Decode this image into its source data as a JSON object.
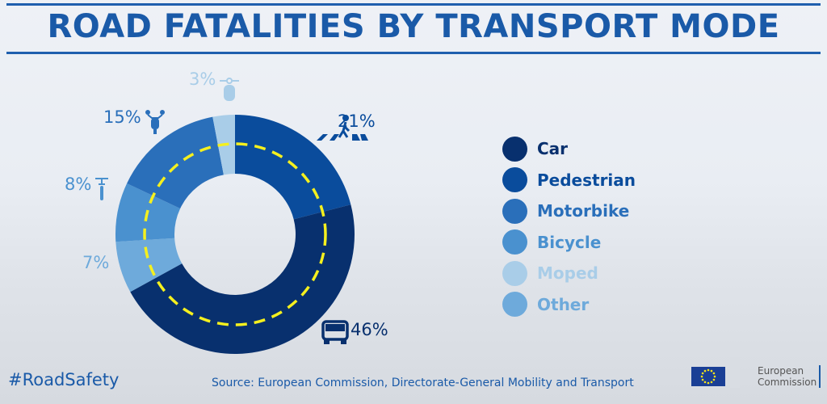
{
  "title": "ROAD FATALITIES BY TRANSPORT MODE",
  "chart_data": {
    "type": "pie",
    "donut": true,
    "title": "ROAD FATALITIES BY TRANSPORT MODE",
    "slices": [
      {
        "name": "Pedestrian",
        "value": 21,
        "label": "21%",
        "color": "#0a4c9c",
        "icon": "pedestrian-crossing-icon"
      },
      {
        "name": "Car",
        "value": 46,
        "label": "46%",
        "color": "#08306e",
        "icon": "car-icon"
      },
      {
        "name": "Other",
        "value": 7,
        "label": "7%",
        "color": "#6eaadb",
        "icon": ""
      },
      {
        "name": "Bicycle",
        "value": 8,
        "label": "8%",
        "color": "#4a91cf",
        "icon": "bicycle-icon"
      },
      {
        "name": "Motorbike",
        "value": 15,
        "label": "15%",
        "color": "#2a6fba",
        "icon": "motorbike-icon"
      },
      {
        "name": "Moped",
        "value": 3,
        "label": "3%",
        "color": "#a9cde8",
        "icon": "moped-icon"
      }
    ],
    "legend": {
      "placement": "right",
      "order": [
        "Car",
        "Pedestrian",
        "Motorbike",
        "Bicycle",
        "Moped",
        "Other"
      ]
    },
    "inner_ring_style": {
      "color": "#f5f01e",
      "dashed": true
    }
  },
  "legend_items": [
    {
      "label": "Car",
      "color": "#08306e"
    },
    {
      "label": "Pedestrian",
      "color": "#0a4c9c"
    },
    {
      "label": "Motorbike",
      "color": "#2a6fba"
    },
    {
      "label": "Bicycle",
      "color": "#4a91cf"
    },
    {
      "label": "Moped",
      "color": "#a9cde8"
    },
    {
      "label": "Other",
      "color": "#6eaadb"
    }
  ],
  "hashtag": "#RoadSafety",
  "source": "Source: European Commission, Directorate-General Mobility and Transport",
  "logo": {
    "line1": "European",
    "line2": "Commission"
  }
}
